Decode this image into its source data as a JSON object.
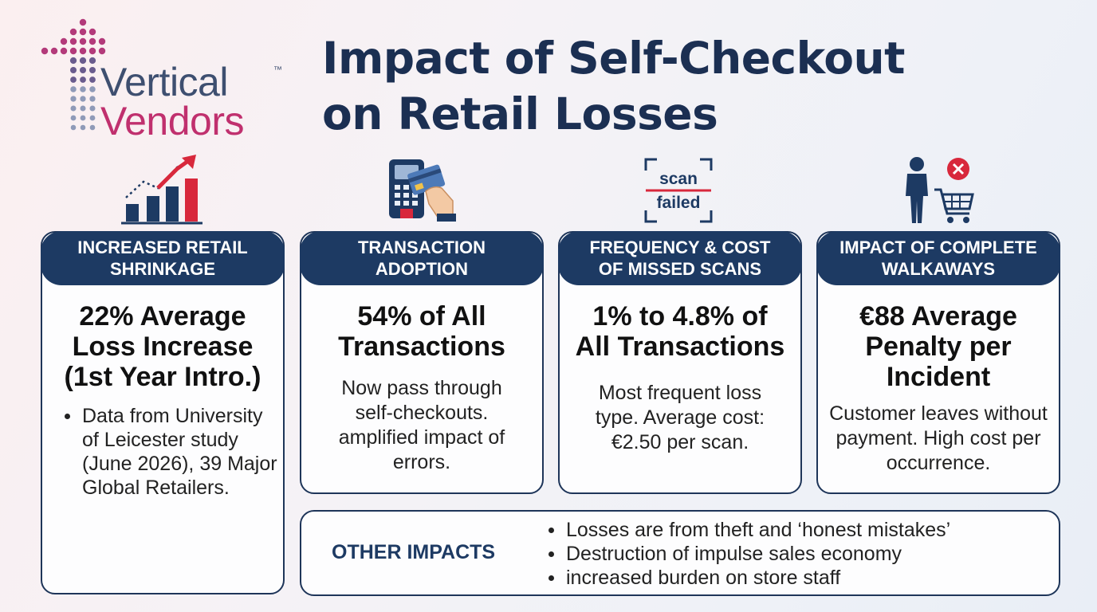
{
  "logo": {
    "word1": "Vertical",
    "word2": "Vendors",
    "trademark": "™",
    "colors": {
      "primary": "#3e4f70",
      "accent": "#c0306e"
    }
  },
  "title": {
    "line1": "Impact of Self-Checkout",
    "line2": "on Retail Losses"
  },
  "icons": {
    "scan_failed": {
      "line1": "scan",
      "line2": "failed"
    }
  },
  "cards": [
    {
      "icon": "bar-chart-rising-icon",
      "header": [
        "INCREASED RETAIL",
        "SHRINKAGE"
      ],
      "metric": [
        "22% Average",
        "Loss Increase",
        "(1st Year Intro.)"
      ],
      "bullets": [
        "Data from University of Leicester study (June 2026), 39 Major Global Retailers."
      ]
    },
    {
      "icon": "card-payment-terminal-icon",
      "header": [
        "TRANSACTION",
        "ADOPTION"
      ],
      "metric": [
        "54% of All",
        "Transactions"
      ],
      "description": "Now pass through self-checkouts. amplified impact of errors."
    },
    {
      "icon": "scan-failed-icon",
      "header": [
        "FREQUENCY & COST",
        "OF MISSED SCANS"
      ],
      "metric": [
        "1% to 4.8% of",
        "All Transactions"
      ],
      "description": "Most frequent loss type. Average cost: €2.50 per scan."
    },
    {
      "icon": "person-cart-cancel-icon",
      "header": [
        "IMPACT OF COMPLETE",
        "WALKAWAYS"
      ],
      "metric": [
        "€88 Average",
        "Penalty per",
        "Incident"
      ],
      "description": "Customer leaves without payment. High cost per occurrence."
    }
  ],
  "other_impacts": {
    "label": "OTHER IMPACTS",
    "items": [
      "Losses are from theft and ‘honest mistakes’",
      "Destruction of impulse sales economy",
      "increased burden on store staff"
    ]
  },
  "colors": {
    "navy": "#1d3a63",
    "title": "#1b2f52",
    "arrow_red": "#d8283c"
  }
}
